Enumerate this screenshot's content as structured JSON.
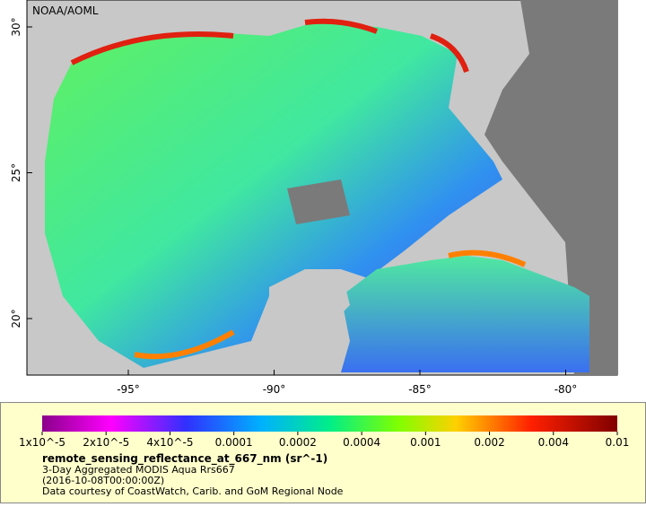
{
  "map": {
    "credit": "NOAA/AOML",
    "lat_ticks": [
      "30°",
      "25°",
      "20°"
    ],
    "lon_ticks": [
      "-95°",
      "-90°",
      "-85°",
      "-80°"
    ]
  },
  "colorbar": {
    "labels": [
      "1x10^-5",
      "2x10^-5",
      "4x10^-5",
      "0.0001",
      "0.0002",
      "0.0004",
      "0.001",
      "0.002",
      "0.004",
      "0.01"
    ],
    "variable": "remote_sensing_reflectance_at_667_nm (sr^-1)",
    "description": "3-Day Aggregated MODIS Aqua Rrs667",
    "time": "(2016-10-08T00:00:00Z)",
    "credit": "Data courtesy of CoastWatch, Carib. and GoM Regional Node"
  }
}
